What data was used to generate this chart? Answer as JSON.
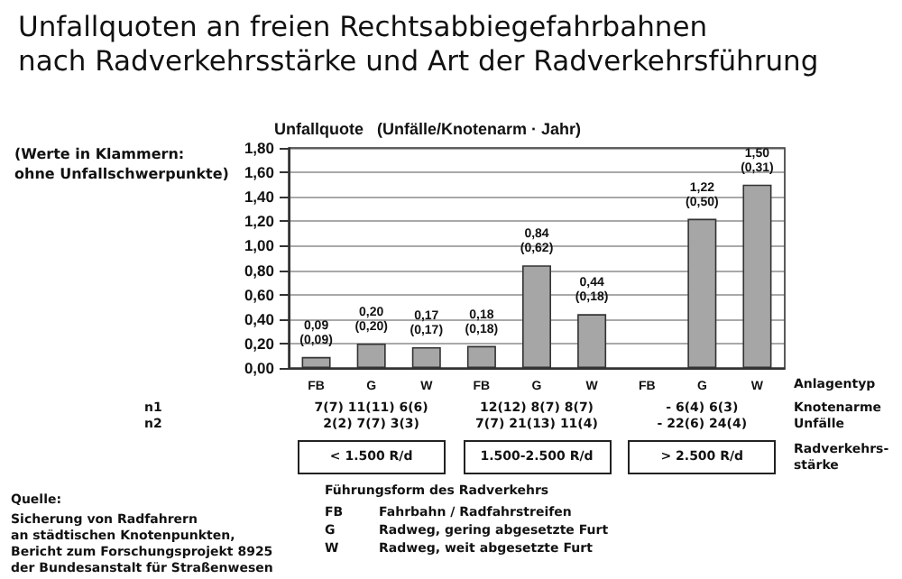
{
  "chart_data": {
    "type": "bar",
    "title": "Unfallquoten an freien Rechtsabbiegefahrbahnen\nnach Radverkehrsstärke und Art der Radverkehrsführung",
    "ylabel": "Unfallquote   (Unfälle/Knotenarm · Jahr)",
    "categories": [
      "FB",
      "G",
      "W",
      "FB",
      "G",
      "W",
      "FB",
      "G",
      "W"
    ],
    "values": [
      0.09,
      0.2,
      0.17,
      0.18,
      0.84,
      0.44,
      null,
      1.22,
      1.5
    ],
    "value_labels": [
      "0,09\n(0,09)",
      "0,20\n(0,20)",
      "0,17\n(0,17)",
      "0,18\n(0,18)",
      "0,84\n(0,62)",
      "0,44\n(0,18)",
      null,
      "1,22\n(0,50)",
      "1,50\n(0,31)"
    ],
    "color": "#a6a6a6",
    "ylim": [
      0,
      1.8
    ],
    "yticks": [
      {
        "value": 0,
        "label": "0,00"
      },
      {
        "value": 0.2,
        "label": "0,20"
      },
      {
        "value": 0.4,
        "label": "0,40"
      },
      {
        "value": 0.6,
        "label": "0,60"
      },
      {
        "value": 0.8,
        "label": "0,80"
      },
      {
        "value": 1.0,
        "label": "1,00"
      },
      {
        "value": 1.2,
        "label": "1,20"
      },
      {
        "value": 1.4,
        "label": "1,40"
      },
      {
        "value": 1.6,
        "label": "1,60"
      },
      {
        "value": 1.8,
        "label": "1,80"
      }
    ],
    "grid": "y",
    "annotations": [
      "(Werte in Klammern:\nohne Unfallschwerpunkte)",
      "Anlagentyp",
      "n1",
      "n2",
      "Knotenarme\nUnfälle",
      "7(7) 11(11) 6(6)",
      "12(12) 8(7) 8(7)",
      "- 6(4) 6(3)",
      "2(2) 7(7) 3(3)",
      "7(7) 21(13) 11(4)",
      "- 22(6) 24(4)",
      "< 1.500 R/d",
      "1.500-2.500 R/d",
      "> 2.500 R/d",
      "Radverkehrs-\nstärke",
      "Führungsform des Radverkehrs",
      "FB",
      "Fahrbahn / Radfahrstreifen",
      "G",
      "Radweg, gering abgesetzte Furt",
      "W",
      "Radweg, weit abgesetzte Furt",
      "Quelle:",
      "Sicherung von Radfahrern\nan städtischen Knotenpunkten,\nBericht zum Forschungsprojekt 8925\nder Bundesanstalt für Straßenwesen"
    ]
  }
}
